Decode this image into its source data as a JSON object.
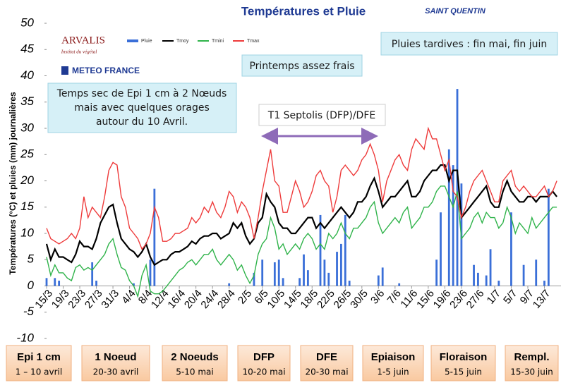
{
  "chart_data": {
    "type": "line",
    "title": "Températures et Pluie",
    "subtitle": "SAINT QUENTIN",
    "y_label": "Températures (°C) et pluies (mm) journalières",
    "logos": [
      "ARVALIS",
      "Institut du végétal",
      "METEO FRANCE"
    ],
    "categories": [
      "15/3",
      null,
      null,
      null,
      "19/3",
      null,
      null,
      null,
      "23/3",
      null,
      null,
      null,
      "27/3",
      null,
      null,
      null,
      "31/3",
      null,
      null,
      null,
      "4/4",
      null,
      null,
      null,
      "8/4",
      null,
      null,
      null,
      "12/4",
      null,
      null,
      null,
      "16/4",
      null,
      null,
      null,
      "20/4",
      null,
      null,
      null,
      "24/4",
      null,
      null,
      null,
      "28/4",
      null,
      null,
      null,
      "2/5",
      null,
      null,
      null,
      "6/5",
      null,
      null,
      null,
      "10/5",
      null,
      null,
      null,
      "14/5",
      null,
      null,
      null,
      "18/5",
      null,
      null,
      null,
      "22/5",
      null,
      null,
      null,
      "26/5",
      null,
      null,
      null,
      "30/5",
      null,
      null,
      null,
      "3/6",
      null,
      null,
      null,
      "7/6",
      null,
      null,
      null,
      "11/6",
      null,
      null,
      null,
      "15/6",
      null,
      null,
      null,
      "19/6",
      null,
      null,
      null,
      "23/6",
      null,
      null,
      null,
      "27/6",
      null,
      null,
      null,
      "1/7",
      null,
      null,
      null,
      "5/7",
      null,
      null,
      null,
      "9/7",
      null,
      null,
      null,
      "13/7",
      null,
      null,
      null
    ],
    "series": [
      {
        "name": "Pluie",
        "type": "bar",
        "color": "#3a6fd8",
        "values": [
          1.5,
          0,
          1.5,
          1,
          0,
          0,
          0,
          0,
          0,
          0,
          0,
          4.5,
          1,
          0,
          0,
          0,
          0,
          0,
          0,
          0,
          0,
          0.5,
          0,
          0,
          0,
          5,
          18.5,
          0,
          0,
          0,
          0,
          0,
          0,
          0,
          0,
          0,
          0,
          0,
          0,
          0,
          0,
          0,
          0,
          0,
          0.5,
          0,
          0,
          0,
          0,
          0,
          2.5,
          0,
          5,
          0,
          0,
          4.5,
          5,
          1.5,
          0,
          0,
          0,
          1.5,
          6,
          3,
          0,
          0,
          13.5,
          5,
          2.5,
          0,
          6.5,
          8,
          13.5,
          1,
          0,
          0,
          0,
          0,
          0,
          0,
          2,
          3.5,
          0,
          0,
          0,
          0.5,
          0,
          0,
          0,
          0,
          0,
          0,
          0,
          0,
          5,
          14,
          0,
          26,
          23,
          37.5,
          19.5,
          0,
          0,
          4,
          2.5,
          0,
          2,
          7,
          0,
          1,
          0,
          0,
          14,
          0,
          0,
          4,
          0,
          0,
          5,
          0,
          1,
          18.5,
          0,
          0
        ]
      },
      {
        "name": "Tmoy",
        "color": "#000000",
        "values": [
          8,
          5,
          7,
          5.5,
          5.5,
          5,
          4.5,
          6,
          8.5,
          7.5,
          7.5,
          7,
          9,
          12,
          13.5,
          15,
          15.5,
          12,
          9,
          8,
          7,
          6.5,
          5.5,
          6.5,
          8,
          5.5,
          4,
          4.5,
          5,
          5,
          6,
          6.5,
          6.5,
          7,
          7.5,
          8.5,
          8,
          9,
          9.5,
          9.5,
          10,
          10,
          9,
          9.5,
          10,
          12,
          11,
          12,
          9.5,
          8,
          9,
          12,
          13,
          17.5,
          16,
          15,
          12,
          11,
          11,
          10,
          10,
          11,
          12,
          13,
          13,
          11,
          12,
          11,
          12,
          13,
          14,
          15,
          14,
          13,
          14,
          16,
          16,
          17,
          19,
          20.5,
          18,
          15,
          16,
          17,
          17,
          18,
          19,
          20,
          17,
          17,
          18,
          20,
          21,
          22,
          22,
          23,
          23,
          20,
          22,
          22,
          13,
          14,
          15,
          16,
          17,
          18,
          19,
          16,
          15,
          15,
          18,
          20,
          18,
          17,
          16,
          16,
          17,
          17,
          16,
          17,
          17,
          17,
          18,
          17
        ]
      },
      {
        "name": "Tmini",
        "color": "#2fb34a",
        "values": [
          5.5,
          2,
          4,
          2.5,
          2.5,
          1.5,
          1,
          3.5,
          4,
          3,
          3.5,
          3,
          4,
          5,
          6,
          8,
          9,
          6,
          3.5,
          3,
          1,
          0,
          -2,
          2,
          4,
          -1,
          -1.5,
          -1.5,
          -1,
          0,
          1,
          2,
          3,
          3.5,
          4.5,
          5,
          4,
          5,
          6,
          6,
          7,
          5,
          4,
          5,
          6,
          5,
          3,
          4,
          2,
          0.5,
          2,
          6,
          8,
          9,
          13,
          11,
          7,
          8,
          6,
          7,
          8,
          7,
          9,
          10,
          9,
          7,
          8,
          7,
          10,
          9,
          10,
          12,
          10,
          9,
          11,
          11,
          12,
          13,
          15,
          16,
          12,
          10,
          11,
          12,
          13,
          12,
          14,
          15,
          11,
          12,
          13,
          15,
          15,
          16,
          18,
          19,
          19,
          17,
          15,
          18,
          9,
          10,
          11,
          13,
          14,
          12,
          14,
          13,
          13,
          11,
          12,
          15,
          13,
          10,
          12,
          11,
          10,
          13,
          11,
          12,
          13,
          14,
          15,
          15
        ]
      },
      {
        "name": "Tmax",
        "color": "#ee3b3b",
        "values": [
          11,
          9,
          8.5,
          8,
          8.5,
          9,
          10,
          9,
          11,
          17,
          13,
          15,
          14,
          13,
          17,
          22,
          23.5,
          23,
          17,
          15,
          11,
          10,
          9,
          7,
          8,
          10,
          15,
          13,
          8.5,
          8.5,
          9,
          10,
          10,
          10.5,
          11,
          13,
          12,
          13,
          15,
          14,
          16,
          14,
          13,
          15,
          18,
          17,
          14,
          16,
          15,
          13,
          9,
          13,
          18,
          22,
          26,
          20,
          19,
          14,
          14,
          17,
          20,
          18,
          15,
          16,
          18,
          21,
          22,
          20,
          19,
          14,
          17,
          22,
          23,
          22,
          21,
          22,
          24,
          25,
          27,
          25,
          22,
          16,
          20,
          22,
          24,
          25,
          23,
          22,
          26,
          28,
          27,
          26,
          30,
          28,
          28,
          25,
          22,
          24,
          18,
          17,
          13,
          15,
          18,
          20,
          21,
          22,
          20,
          18,
          16,
          16,
          20,
          21,
          22,
          19,
          18,
          19,
          18,
          17,
          17,
          18,
          19,
          17,
          18,
          20
        ]
      }
    ],
    "ylim": [
      -10,
      50
    ],
    "yticks": [
      -10,
      -5,
      0,
      5,
      10,
      15,
      20,
      25,
      30,
      35,
      40,
      45,
      50
    ],
    "grid": false,
    "annotations": [
      {
        "text": "Pluies tardives : fin mai, fin juin"
      },
      {
        "text": "Printemps assez frais"
      },
      {
        "lines": [
          "Temps sec de Epi 1 cm à 2 Nœuds",
          "mais avec quelques orages",
          "autour du 10 Avril."
        ]
      },
      {
        "text": "T1 Septolis (DFP)/DFE"
      }
    ],
    "stages": [
      {
        "name": "Epi 1 cm",
        "period": "1 – 10 avril"
      },
      {
        "name": "1 Noeud",
        "period": "20-30 avril"
      },
      {
        "name": "2 Noeuds",
        "period": "5-10 mai"
      },
      {
        "name": "DFP",
        "period": "10-20 mai"
      },
      {
        "name": "DFE",
        "period": "20-30 mai"
      },
      {
        "name": "Epiaison",
        "period": "1-5 juin"
      },
      {
        "name": "Floraison",
        "period": "5-15 juin"
      },
      {
        "name": "Rempl.",
        "period": "15-30 juin"
      }
    ]
  }
}
